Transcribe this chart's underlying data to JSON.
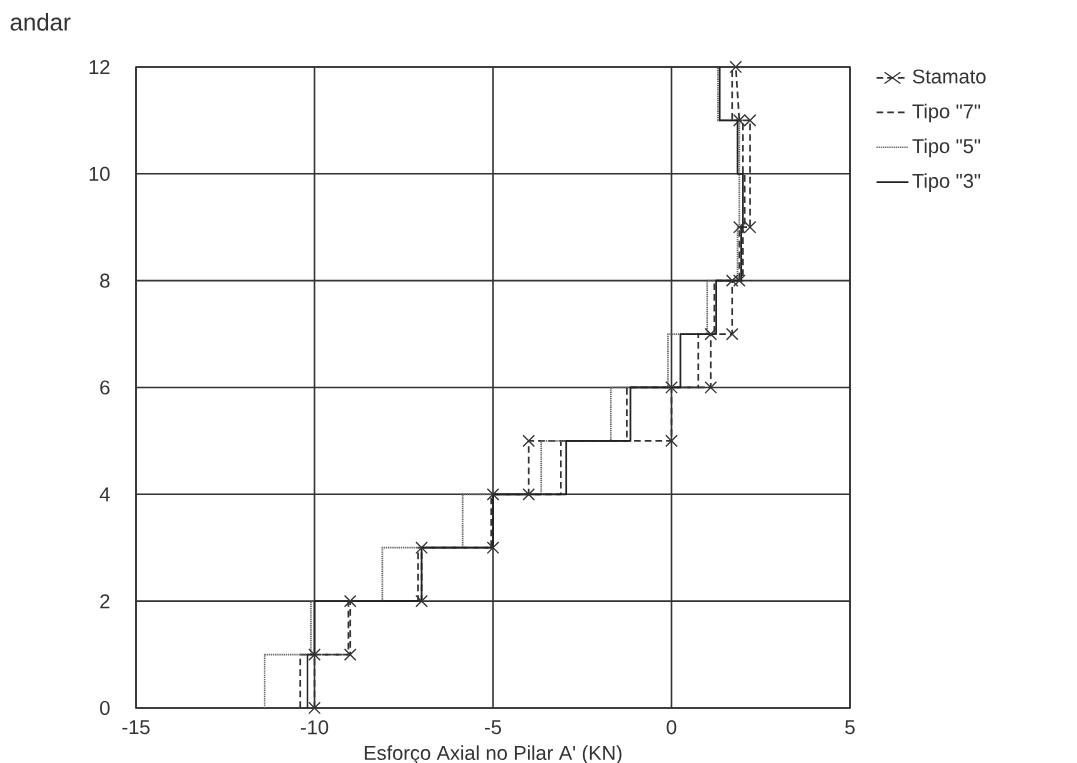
{
  "chart_data": {
    "type": "line",
    "xlabel": "Esforço Axial no Pilar A' (KN)",
    "ylabel": "andar",
    "xlim": [
      -15,
      5
    ],
    "ylim": [
      0,
      12
    ],
    "xticks": [
      -15,
      -10,
      -5,
      0,
      5
    ],
    "yticks": [
      0,
      2,
      4,
      6,
      8,
      10,
      12
    ],
    "grid": true,
    "legend": "top right",
    "series": [
      {
        "name": "Stamato",
        "color": "#333333",
        "line_style": "dashed",
        "marker": "cross",
        "x": [
          -10,
          -10,
          -9,
          -9,
          -7,
          -7,
          -5,
          -5,
          -4,
          -4,
          0,
          0,
          1.1,
          1.1,
          1.7,
          1.7,
          1.9,
          1.9,
          2.2,
          2.2,
          1.9,
          1.8
        ],
        "values": [
          0,
          1,
          1,
          2,
          2,
          3,
          3,
          4,
          4,
          5,
          5,
          6,
          6,
          7,
          7,
          8,
          8,
          9,
          9,
          11,
          11,
          12
        ]
      },
      {
        "name": "Tipo \"7\"",
        "color": "#333333",
        "line_style": "dashed",
        "marker": "none",
        "x": [
          -10.4,
          -10.4,
          -9.05,
          -9.05,
          -7.1,
          -7.1,
          -5.05,
          -5.05,
          -3.1,
          -3.1,
          -1.25,
          -1.25,
          0.75,
          0.75,
          1.2,
          1.2,
          2.0,
          2.0,
          2.05,
          2.05,
          2.0,
          2.0,
          1.7,
          1.7
        ],
        "values": [
          0,
          1,
          1,
          2,
          2,
          3,
          3,
          4,
          4,
          5,
          5,
          6,
          6,
          7,
          7,
          8,
          8,
          9,
          9,
          10,
          10,
          11,
          11,
          12
        ]
      },
      {
        "name": "Tipo \"5\"",
        "color": "#666666",
        "line_style": "dotted",
        "marker": "none",
        "x": [
          -11.4,
          -11.4,
          -10.1,
          -10.1,
          -8.1,
          -8.1,
          -5.85,
          -5.85,
          -3.65,
          -3.65,
          -1.7,
          -1.7,
          -0.1,
          -0.1,
          1.0,
          1.0,
          1.85,
          1.85,
          1.9,
          1.9,
          1.3,
          1.3
        ],
        "values": [
          0,
          1,
          1,
          2,
          2,
          3,
          3,
          4,
          4,
          5,
          5,
          6,
          6,
          7,
          7,
          8,
          8,
          9,
          9,
          11,
          11,
          12
        ]
      },
      {
        "name": "Tipo \"3\"",
        "color": "#222222",
        "line_style": "solid",
        "marker": "none",
        "x": [
          -10.2,
          -10.2,
          -10.0,
          -10.0,
          -7.0,
          -7.0,
          -5.0,
          -5.0,
          -2.95,
          -2.95,
          -1.15,
          -1.15,
          0.25,
          0.25,
          1.25,
          1.25,
          1.95,
          1.95,
          2.0,
          2.0,
          1.85,
          1.85,
          1.35,
          1.35
        ],
        "values": [
          0,
          1,
          1,
          2,
          2,
          3,
          3,
          4,
          4,
          5,
          5,
          6,
          6,
          7,
          7,
          8,
          8,
          9,
          9,
          10,
          10,
          11,
          11,
          12
        ]
      }
    ]
  }
}
